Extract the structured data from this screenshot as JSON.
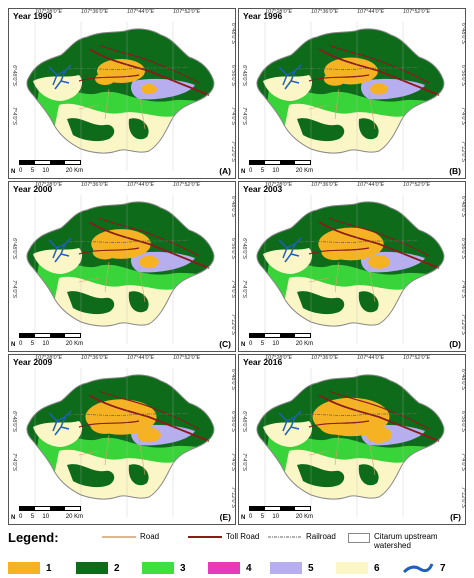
{
  "panels": [
    {
      "year": "Year 1990",
      "label": "(A)"
    },
    {
      "year": "Year 1996",
      "label": "(B)"
    },
    {
      "year": "Year 2000",
      "label": "(C)"
    },
    {
      "year": "Year 2003",
      "label": "(D)"
    },
    {
      "year": "Year 2009",
      "label": "(E)"
    },
    {
      "year": "Year 2016",
      "label": "(F)"
    }
  ],
  "lon_ticks": [
    "107°28'0\"E",
    "107°36'0\"E",
    "107°44'0\"E",
    "107°52'0\"E"
  ],
  "lat_ticks": [
    "6°48'0\"S",
    "6°56'0\"S",
    "7°4'0\"S",
    "7°12'0\"S"
  ],
  "scale": {
    "ticks": [
      "0",
      "5",
      "10",
      "20 Km"
    ]
  },
  "legend": {
    "title": "Legend:",
    "lines": [
      {
        "label": "Road",
        "color": "#d2a06a"
      },
      {
        "label": "Toll Road",
        "color": "#8b1a1a"
      },
      {
        "label": "Railroad",
        "color": "#666666"
      },
      {
        "label": "Citarum upstream watershed",
        "color": "#888888"
      }
    ],
    "classes": [
      {
        "label": "1",
        "color": "#f5b324"
      },
      {
        "label": "2",
        "color": "#0d6b1a"
      },
      {
        "label": "3",
        "color": "#3ee03e"
      },
      {
        "label": "4",
        "color": "#e83ab8"
      },
      {
        "label": "5",
        "color": "#b7aef0"
      },
      {
        "label": "6",
        "color": "#fbf6c6"
      },
      {
        "label": "7",
        "color": "#1f5fbf"
      }
    ]
  }
}
